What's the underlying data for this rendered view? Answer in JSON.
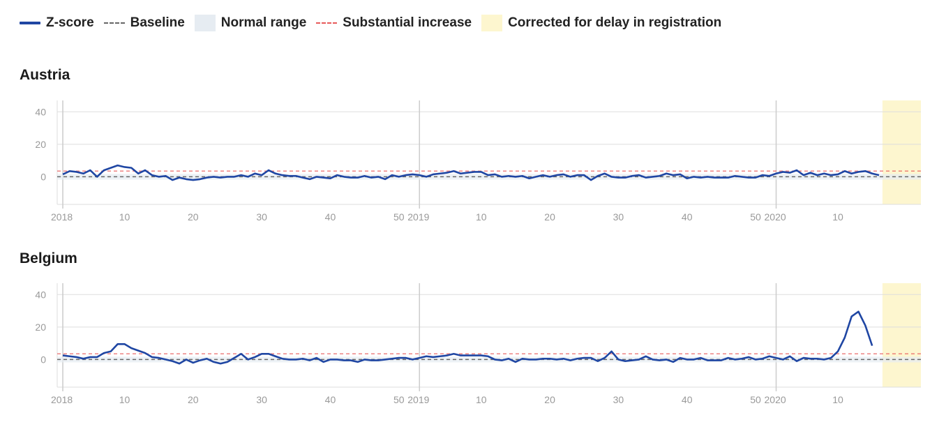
{
  "legend": {
    "zscore": "Z-score",
    "baseline": "Baseline",
    "normal_range": "Normal range",
    "substantial": "Substantial increase",
    "corrected": "Corrected for delay in registration"
  },
  "colors": {
    "zscore": "#1f46a3",
    "baseline": "#666666",
    "normal_range": "#e6ecf2",
    "substantial": "#e85a5a",
    "corrected": "#fdf6cf",
    "corrected_line": "#5b6e8c"
  },
  "chart_data": [
    {
      "type": "line",
      "title": "Austria",
      "ylim": [
        -17,
        47
      ],
      "yticks": [
        40,
        20,
        0
      ],
      "xlim": [
        1,
        126
      ],
      "x_ticks": [
        {
          "x": 1,
          "label": "2018"
        },
        {
          "x": 10,
          "label": "10"
        },
        {
          "x": 20,
          "label": "20"
        },
        {
          "x": 30,
          "label": "30"
        },
        {
          "x": 40,
          "label": "40"
        },
        {
          "x": 50,
          "label": "50"
        },
        {
          "x": 53,
          "label": "2019"
        },
        {
          "x": 62,
          "label": "10"
        },
        {
          "x": 72,
          "label": "20"
        },
        {
          "x": 82,
          "label": "30"
        },
        {
          "x": 92,
          "label": "40"
        },
        {
          "x": 102,
          "label": "50"
        },
        {
          "x": 105,
          "label": "2020"
        },
        {
          "x": 114,
          "label": "10"
        }
      ],
      "year_lines": [
        1,
        53,
        105
      ],
      "grid": true,
      "baseline": 0,
      "threshold": 3.5,
      "corrected_from": 121,
      "series": [
        {
          "name": "Z-score",
          "values": [
            1.5,
            3.5,
            3,
            2,
            4,
            0,
            4,
            5.5,
            7,
            6,
            5.5,
            2,
            4,
            1,
            0,
            0.5,
            -2,
            -0.5,
            -1.5,
            -2,
            -1.5,
            -0.5,
            0,
            -0.5,
            0,
            0,
            1,
            0,
            2,
            1,
            4,
            2,
            1,
            0.5,
            0.5,
            -0.5,
            -1.5,
            0,
            -0.5,
            -1,
            1,
            0,
            -0.5,
            -0.5,
            0.5,
            -0.5,
            0,
            -1.5,
            1,
            0,
            1,
            1.5,
            1,
            0,
            1.5,
            2,
            2.5,
            3.5,
            2,
            2.5,
            3,
            3,
            1,
            1.5,
            0,
            0.5,
            0,
            0.5,
            -1,
            0,
            1,
            0,
            1,
            1.5,
            0,
            1,
            1,
            -2,
            0.5,
            2,
            0,
            -0.5,
            -0.5,
            0.5,
            1,
            -0.5,
            0,
            0.5,
            2,
            1,
            1.5,
            -1,
            0,
            -0.5,
            0,
            -0.5,
            -0.5,
            -0.5,
            0.5,
            0,
            -0.5,
            -0.5,
            1,
            0.5,
            2,
            3,
            2.5,
            4,
            1,
            2.5,
            1,
            2,
            1,
            1.5,
            3.5,
            2,
            3,
            3.5,
            2,
            1
          ]
        }
      ]
    },
    {
      "type": "line",
      "title": "Belgium",
      "ylim": [
        -17,
        47
      ],
      "yticks": [
        40,
        20,
        0
      ],
      "xlim": [
        1,
        126
      ],
      "x_ticks": [
        {
          "x": 1,
          "label": "2018"
        },
        {
          "x": 10,
          "label": "10"
        },
        {
          "x": 20,
          "label": "20"
        },
        {
          "x": 30,
          "label": "30"
        },
        {
          "x": 40,
          "label": "40"
        },
        {
          "x": 50,
          "label": "50"
        },
        {
          "x": 53,
          "label": "2019"
        },
        {
          "x": 62,
          "label": "10"
        },
        {
          "x": 72,
          "label": "20"
        },
        {
          "x": 82,
          "label": "30"
        },
        {
          "x": 92,
          "label": "40"
        },
        {
          "x": 102,
          "label": "50"
        },
        {
          "x": 105,
          "label": "2020"
        },
        {
          "x": 114,
          "label": "10"
        }
      ],
      "year_lines": [
        1,
        53,
        105
      ],
      "grid": true,
      "baseline": 0,
      "threshold": 3.5,
      "corrected_from": 121,
      "series": [
        {
          "name": "Z-score",
          "values": [
            2.5,
            2,
            1.5,
            0.5,
            1.5,
            1.5,
            4,
            5,
            9.5,
            9.5,
            7,
            5.5,
            4,
            1.5,
            1,
            0,
            -1,
            -2.5,
            0,
            -2,
            -0.5,
            0.5,
            -1.5,
            -2.5,
            -1.5,
            1,
            3.5,
            0,
            1.5,
            3.5,
            3.5,
            2,
            0.5,
            0,
            0,
            0.5,
            -0.5,
            1,
            -1.5,
            0,
            0,
            -0.5,
            -0.5,
            -1.5,
            0,
            -0.5,
            -0.5,
            0,
            0.5,
            1,
            1,
            0,
            1,
            2,
            1.5,
            2,
            2.5,
            3.5,
            2.5,
            2.5,
            2.5,
            2.5,
            2,
            0,
            -0.5,
            0.5,
            -1.5,
            0.5,
            0,
            0,
            0.5,
            0.5,
            0,
            0.5,
            -0.5,
            0.5,
            1,
            1,
            -1,
            1,
            5,
            0,
            -1,
            -0.5,
            0,
            2,
            0,
            -0.5,
            0,
            -1.5,
            1,
            0,
            0,
            1,
            -0.5,
            -0.5,
            -0.5,
            1,
            0,
            0.5,
            1.5,
            0,
            0.5,
            2,
            1,
            0,
            2,
            -1,
            1,
            0.5,
            0.5,
            0,
            1,
            5,
            13.5,
            26.5,
            29.5,
            21,
            8.5
          ]
        }
      ]
    }
  ]
}
